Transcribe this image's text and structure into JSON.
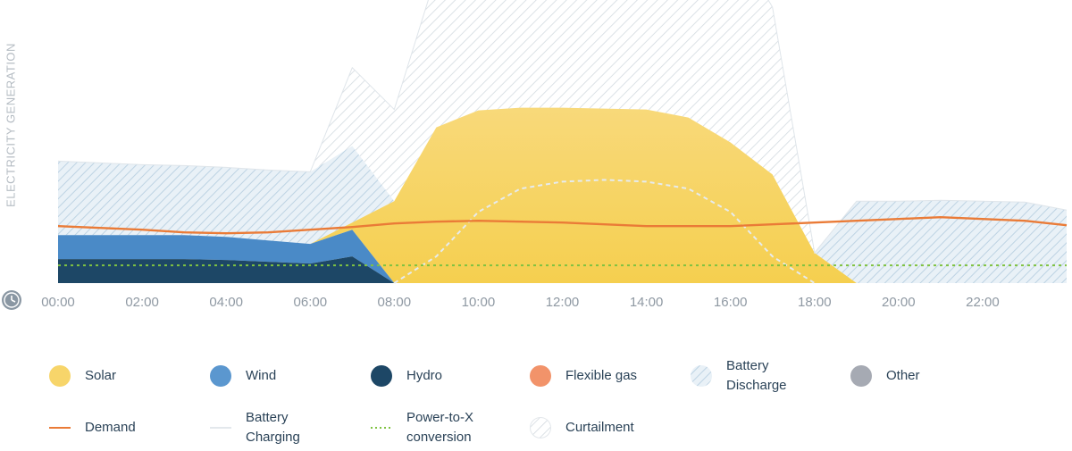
{
  "chart_data": {
    "type": "area",
    "ylabel": "ELECTRICITY GENERATION",
    "x_ticks": [
      "00:00",
      "02:00",
      "04:00",
      "06:00",
      "08:00",
      "10:00",
      "12:00",
      "14:00",
      "16:00",
      "18:00",
      "20:00",
      "22:00"
    ],
    "x": [
      0,
      1,
      2,
      3,
      4,
      5,
      6,
      7,
      8,
      9,
      10,
      11,
      12,
      13,
      14,
      15,
      16,
      17,
      18,
      19,
      20,
      21,
      22,
      23,
      24
    ],
    "series": [
      {
        "name": "Hydro",
        "color": "#1d4766",
        "values": [
          27,
          27,
          27,
          27,
          26,
          24,
          22,
          30,
          0,
          0,
          0,
          0,
          0,
          0,
          0,
          0,
          0,
          0,
          0,
          0,
          0,
          0,
          0,
          0,
          0
        ]
      },
      {
        "name": "Wind",
        "color": "#4a8ac7",
        "values": [
          27,
          27,
          27,
          27,
          26,
          24,
          22,
          30,
          0,
          0,
          0,
          0,
          0,
          0,
          0,
          0,
          0,
          0,
          0,
          0,
          0,
          0,
          0,
          0,
          0
        ]
      },
      {
        "name": "Solar",
        "color": "#f7d56a",
        "values": [
          0,
          0,
          0,
          0,
          0,
          0,
          0,
          8,
          92,
          175,
          194,
          197,
          197,
          196,
          195,
          186,
          158,
          122,
          34,
          0,
          0,
          0,
          0,
          0,
          0
        ]
      },
      {
        "name": "Battery Discharge",
        "color": "#bcd7ea",
        "values": [
          83,
          81,
          79,
          78,
          78,
          79,
          81,
          86,
          0,
          0,
          0,
          0,
          0,
          0,
          0,
          0,
          0,
          0,
          0,
          92,
          92,
          93,
          92,
          91,
          82
        ]
      },
      {
        "name": "Curtailment",
        "color": "#c9d2da",
        "values": [
          0,
          0,
          0,
          0,
          0,
          0,
          0,
          88,
          103,
          172,
          246,
          276,
          292,
          300,
          290,
          270,
          232,
          188,
          0,
          0,
          0,
          0,
          0,
          0,
          0
        ]
      }
    ],
    "demand": {
      "name": "Demand",
      "color": "#ea7b37",
      "values": [
        64,
        62,
        60,
        57,
        56,
        57,
        60,
        63,
        67,
        69,
        70,
        69,
        68,
        66,
        64,
        64,
        64,
        66,
        68,
        70,
        72,
        74,
        72,
        70,
        65
      ]
    },
    "battery_charging": {
      "name": "Battery Charging",
      "color": "#dfe6ec",
      "values": [
        0,
        0,
        0,
        0,
        0,
        0,
        0,
        0,
        0,
        30,
        80,
        106,
        114,
        116,
        114,
        106,
        80,
        30,
        0,
        0,
        0,
        0,
        0,
        0,
        0
      ]
    },
    "power_to_x": {
      "name": "Power-to-X conversion",
      "color": "#7fc241",
      "values": [
        20,
        20,
        20,
        20,
        20,
        20,
        20,
        20,
        20,
        20,
        20,
        20,
        20,
        20,
        20,
        20,
        20,
        20,
        20,
        20,
        20,
        20,
        20,
        20,
        20
      ]
    },
    "ylim": [
      0,
      310
    ],
    "grid": false
  },
  "legend": [
    {
      "label": "Solar",
      "swatch": "circle",
      "color": "#f7d56a"
    },
    {
      "label": "Wind",
      "swatch": "circle",
      "color": "#5b97cf"
    },
    {
      "label": "Hydro",
      "swatch": "circle",
      "color": "#1d4766"
    },
    {
      "label": "Flexible gas",
      "swatch": "circle",
      "color": "#f2936a"
    },
    {
      "label": "Battery Discharge",
      "swatch": "hatch-circle",
      "color": "#bcd7ea"
    },
    {
      "label": "Other",
      "swatch": "circle",
      "color": "#a6aab3"
    },
    {
      "label": "Demand",
      "swatch": "line",
      "color": "#ea7b37"
    },
    {
      "label": "Battery Charging",
      "swatch": "faint-line",
      "color": "#e3e8ec"
    },
    {
      "label": "Power-to-X conversion",
      "swatch": "dotted",
      "color": "#7fc241"
    },
    {
      "label": "Curtailment",
      "swatch": "hatch-circle-gray",
      "color": "#c9d2da"
    }
  ],
  "icons": {
    "x_axis": "clock-icon"
  }
}
